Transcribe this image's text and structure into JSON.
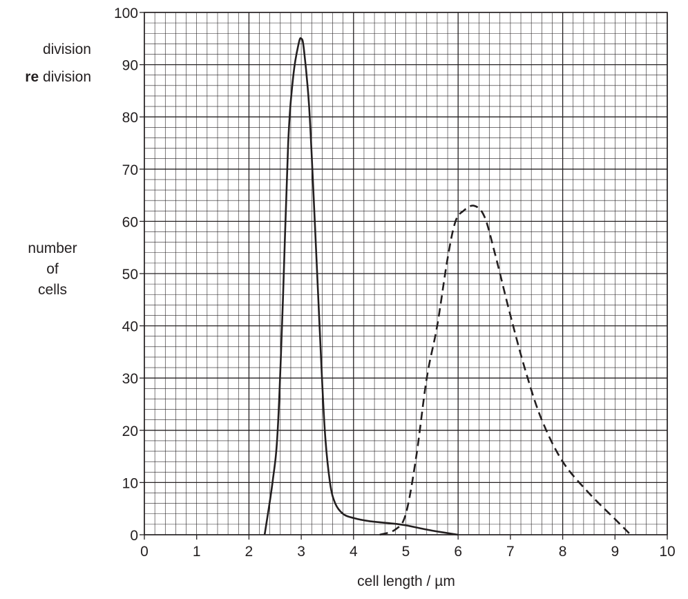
{
  "chart_data": {
    "type": "line",
    "xlabel": "cell length / µm",
    "ylabel_lines": [
      "number",
      "of",
      "cells"
    ],
    "xlim": [
      0,
      10
    ],
    "ylim": [
      0,
      100
    ],
    "x_ticks": [
      "0",
      "1",
      "2",
      "3",
      "4",
      "5",
      "6",
      "7",
      "8",
      "9",
      "10"
    ],
    "y_ticks": [
      "0",
      "10",
      "20",
      "30",
      "40",
      "50",
      "60",
      "70",
      "80",
      "90",
      "100"
    ],
    "grid": true,
    "legend_placement": "top-left",
    "legend": [
      {
        "prefix": "",
        "bold": "",
        "suffix": "division",
        "style": "solid"
      },
      {
        "prefix": "",
        "bold": "re",
        "suffix": " division",
        "style": "dashed"
      }
    ],
    "series": [
      {
        "style": "solid",
        "x": [
          2.3,
          2.45,
          2.55,
          2.65,
          2.75,
          2.85,
          2.95,
          3.0,
          3.05,
          3.15,
          3.25,
          3.35,
          3.45,
          3.55,
          3.65,
          3.8,
          4.0,
          4.3,
          4.7,
          5.0,
          5.5,
          6.0
        ],
        "y": [
          0,
          10,
          20,
          45,
          75,
          88,
          94,
          95,
          93,
          82,
          62,
          40,
          20,
          10,
          6,
          4,
          3.2,
          2.6,
          2.2,
          1.8,
          0.8,
          0
        ]
      },
      {
        "style": "dashed",
        "x": [
          4.5,
          4.8,
          5.0,
          5.2,
          5.4,
          5.6,
          5.8,
          5.95,
          6.1,
          6.3,
          6.5,
          6.7,
          7.0,
          7.3,
          7.6,
          8.0,
          8.5,
          9.0,
          9.3
        ],
        "y": [
          0,
          1,
          4,
          15,
          30,
          40,
          53,
          60,
          62,
          63,
          61,
          54,
          42,
          31,
          22,
          14,
          8,
          3,
          0
        ]
      }
    ]
  }
}
